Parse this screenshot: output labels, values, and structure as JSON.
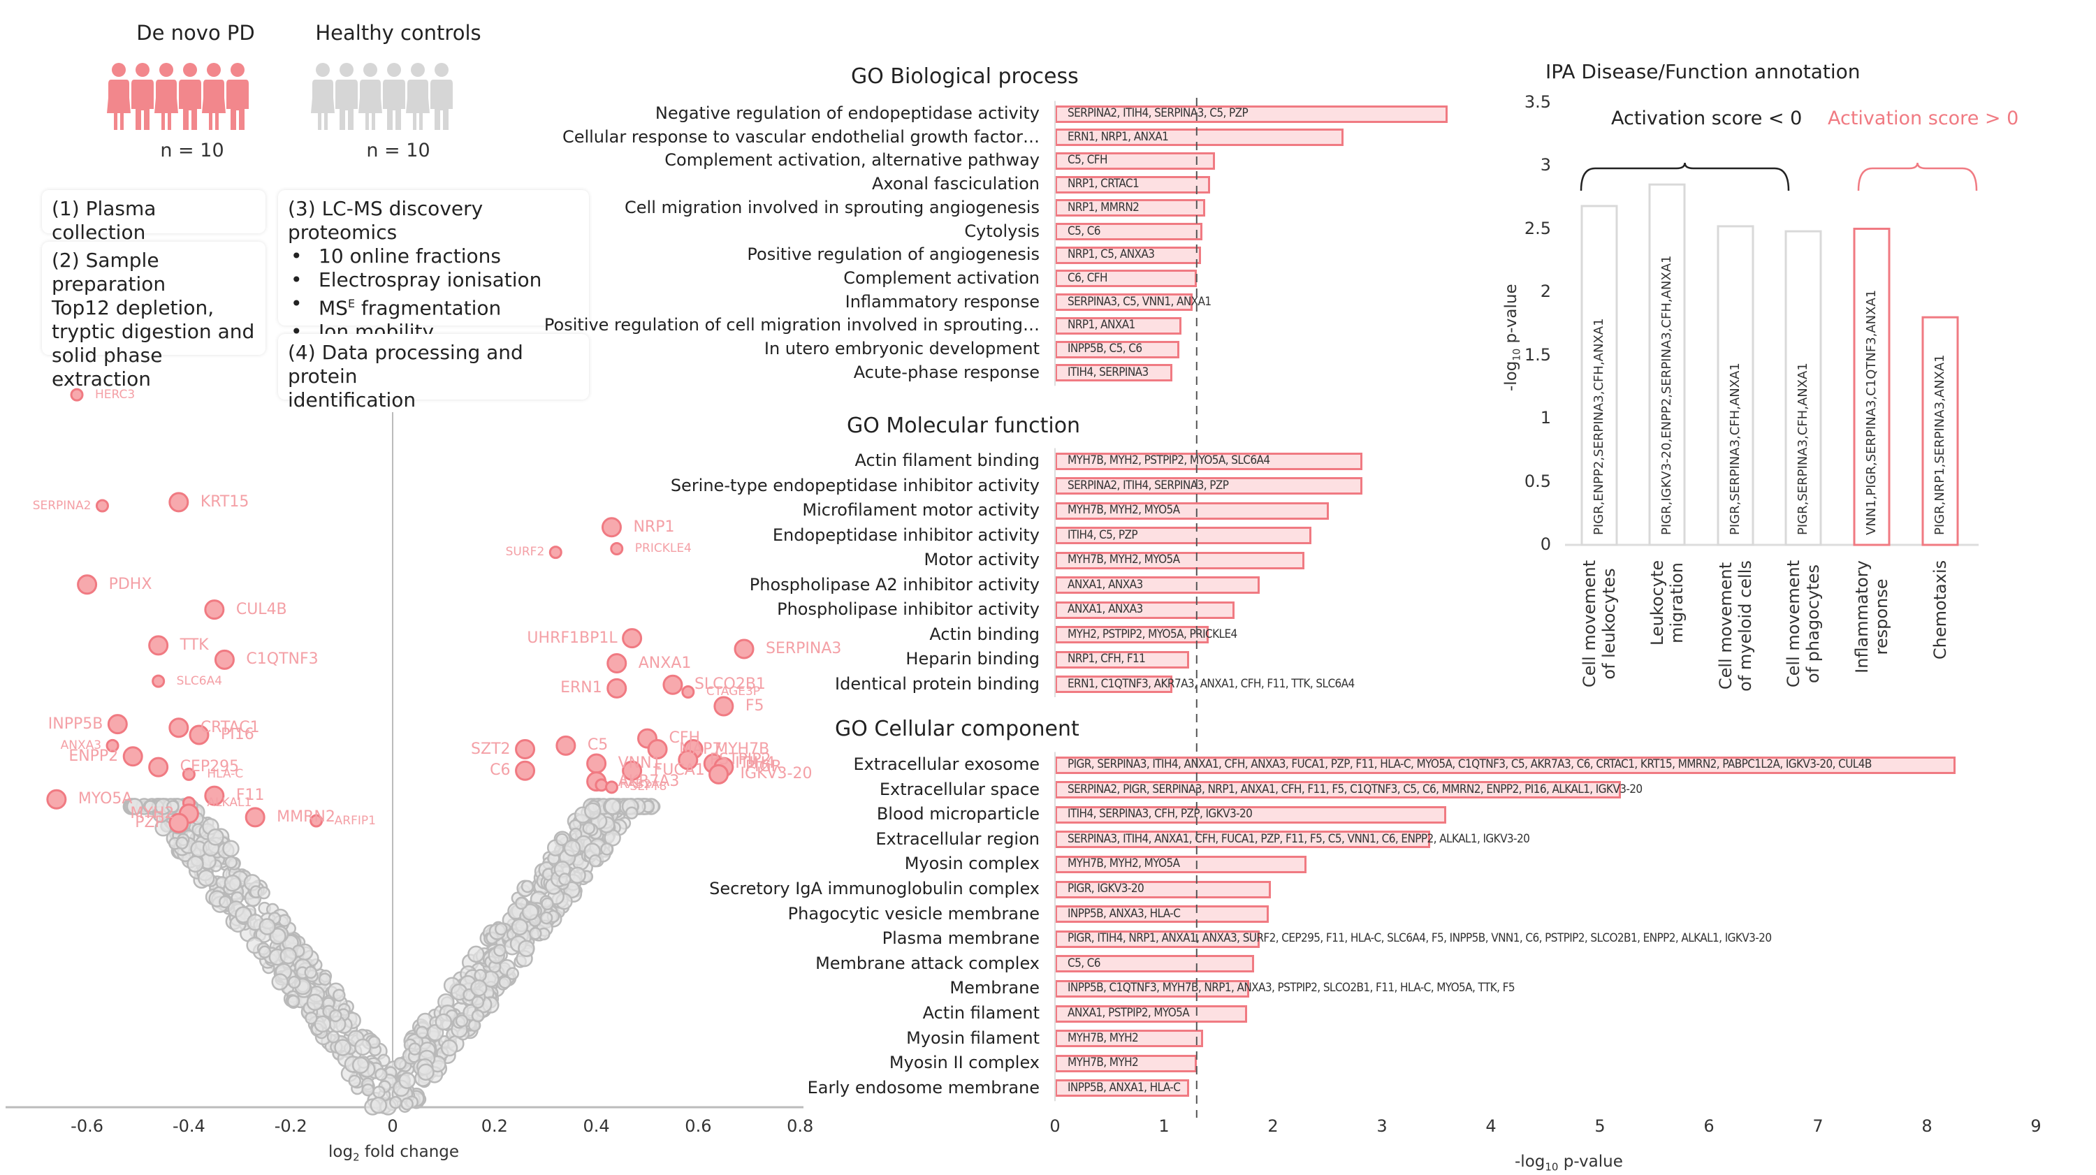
{
  "cohorts": {
    "pd": {
      "title": "De novo PD",
      "n_label": "n = 10",
      "color": "#f2878c",
      "icons": [
        "female",
        "male",
        "female",
        "male",
        "female",
        "male"
      ]
    },
    "hc": {
      "title": "Healthy controls",
      "n_label": "n = 10",
      "color": "#d6d6d6",
      "icons": [
        "female",
        "male",
        "female",
        "male",
        "female",
        "male"
      ]
    }
  },
  "workflow": {
    "step1": "(1) Plasma collection",
    "step2_title": "(2) Sample preparation",
    "step2_body": [
      "Top12 depletion,",
      "tryptic digestion and",
      "solid phase extraction"
    ],
    "step3_title": "(3) LC-MS discovery proteomics",
    "step3_items": [
      "10 online fractions",
      "Electrospray ionisation",
      "MS",
      "Ion mobility"
    ],
    "step3_item3_sup": "E",
    "step3_item3_rest": " fragmentation",
    "step4": [
      "(4) Data processing and protein",
      "identification"
    ]
  },
  "colors": {
    "accent": "#f07a82",
    "accent_fill": "#fde0e2",
    "grey_point": "#c8c8c8",
    "label_pink": "#f4a0a6"
  },
  "chart_data": [
    {
      "type": "scatter",
      "title": "Volcano plot",
      "xlabel": "log2 fold change",
      "xlabel_sub": "2",
      "ylabel": "",
      "xlim": [
        -0.8,
        0.8
      ],
      "xticks": [
        "-0.6",
        "-0.4",
        "-0.2",
        "0",
        "0.2",
        "0.4",
        "0.6",
        "0.8"
      ],
      "xtick_values": [
        -0.6,
        -0.4,
        -0.2,
        0,
        0.2,
        0.4,
        0.6,
        0.8
      ],
      "y_note": "significance expressed as fraction of y-axis height (no y ticks shown)",
      "significant_points": [
        {
          "label": "HERC3",
          "x": -0.62,
          "y": 0.995,
          "size": "small"
        },
        {
          "label": "SERPINA2",
          "x": -0.57,
          "y": 0.84,
          "size": "small"
        },
        {
          "label": "KRT15",
          "x": -0.42,
          "y": 0.845,
          "size": "large"
        },
        {
          "label": "PDHX",
          "x": -0.6,
          "y": 0.73,
          "size": "large"
        },
        {
          "label": "CUL4B",
          "x": -0.35,
          "y": 0.695,
          "size": "large"
        },
        {
          "label": "TTK",
          "x": -0.46,
          "y": 0.645,
          "size": "large"
        },
        {
          "label": "C1QTNF3",
          "x": -0.33,
          "y": 0.625,
          "size": "large"
        },
        {
          "label": "SLC6A4",
          "x": -0.46,
          "y": 0.595,
          "size": "small"
        },
        {
          "label": "INPP5B",
          "x": -0.54,
          "y": 0.535,
          "size": "large"
        },
        {
          "label": "CRTAC1",
          "x": -0.42,
          "y": 0.53,
          "size": "large"
        },
        {
          "label": "PI16",
          "x": -0.38,
          "y": 0.52,
          "size": "large"
        },
        {
          "label": "ANXA3",
          "x": -0.55,
          "y": 0.505,
          "size": "small"
        },
        {
          "label": "ENPP2",
          "x": -0.51,
          "y": 0.49,
          "size": "large"
        },
        {
          "label": "CEP295",
          "x": -0.46,
          "y": 0.475,
          "size": "large"
        },
        {
          "label": "HLA-C",
          "x": -0.4,
          "y": 0.465,
          "size": "small"
        },
        {
          "label": "MYO5A",
          "x": -0.66,
          "y": 0.43,
          "size": "large"
        },
        {
          "label": "F11",
          "x": -0.35,
          "y": 0.435,
          "size": "large"
        },
        {
          "label": "ALKAL1",
          "x": -0.4,
          "y": 0.425,
          "size": "small"
        },
        {
          "label": "MYH2",
          "x": -0.4,
          "y": 0.41,
          "size": "large"
        },
        {
          "label": "PZP",
          "x": -0.42,
          "y": 0.397,
          "size": "large"
        },
        {
          "label": "MMRN2",
          "x": -0.27,
          "y": 0.405,
          "size": "large"
        },
        {
          "label": "ARFIP1",
          "x": -0.15,
          "y": 0.4,
          "size": "small"
        },
        {
          "label": "NRP1",
          "x": 0.43,
          "y": 0.81,
          "size": "large"
        },
        {
          "label": "SURF2",
          "x": 0.32,
          "y": 0.775,
          "size": "small"
        },
        {
          "label": "PRICKLE4",
          "x": 0.44,
          "y": 0.78,
          "size": "small"
        },
        {
          "label": "UHRF1BP1L",
          "x": 0.47,
          "y": 0.655,
          "size": "large"
        },
        {
          "label": "SERPINA3",
          "x": 0.69,
          "y": 0.64,
          "size": "large"
        },
        {
          "label": "ANXA1",
          "x": 0.44,
          "y": 0.62,
          "size": "large"
        },
        {
          "label": "SLCO2B1",
          "x": 0.55,
          "y": 0.59,
          "size": "large"
        },
        {
          "label": "CTAGE3P",
          "x": 0.58,
          "y": 0.58,
          "size": "small"
        },
        {
          "label": "ERN1",
          "x": 0.44,
          "y": 0.585,
          "size": "large"
        },
        {
          "label": "F5",
          "x": 0.65,
          "y": 0.56,
          "size": "large"
        },
        {
          "label": "CFH",
          "x": 0.5,
          "y": 0.515,
          "size": "large"
        },
        {
          "label": "SZT2",
          "x": 0.26,
          "y": 0.5,
          "size": "large"
        },
        {
          "label": "C5",
          "x": 0.34,
          "y": 0.505,
          "size": "large"
        },
        {
          "label": "MAP7",
          "x": 0.52,
          "y": 0.5,
          "size": "large"
        },
        {
          "label": "MYH7B",
          "x": 0.59,
          "y": 0.5,
          "size": "large"
        },
        {
          "label": "PSTPIP2",
          "x": 0.58,
          "y": 0.485,
          "size": "large"
        },
        {
          "label": "ITIH4",
          "x": 0.63,
          "y": 0.48,
          "size": "large"
        },
        {
          "label": "PIGR",
          "x": 0.65,
          "y": 0.475,
          "size": "large"
        },
        {
          "label": "VNN1",
          "x": 0.4,
          "y": 0.48,
          "size": "large"
        },
        {
          "label": "FUCA1",
          "x": 0.47,
          "y": 0.47,
          "size": "large"
        },
        {
          "label": "C6",
          "x": 0.26,
          "y": 0.47,
          "size": "large"
        },
        {
          "label": "IGKV3-20",
          "x": 0.64,
          "y": 0.465,
          "size": "large"
        },
        {
          "label": "AKR7A3",
          "x": 0.4,
          "y": 0.455,
          "size": "large"
        },
        {
          "label": "RAB2A",
          "x": 0.41,
          "y": 0.45,
          "size": "small"
        },
        {
          "label": "SEPT8",
          "x": 0.43,
          "y": 0.447,
          "size": "small"
        }
      ]
    },
    {
      "type": "bar",
      "orientation": "horizontal",
      "xlabel": "-log10 p-value",
      "xlabel_sub": "10",
      "xlim": [
        0,
        9
      ],
      "xticks": [
        "0",
        "1",
        "2",
        "3",
        "4",
        "5",
        "6",
        "7",
        "8",
        "9"
      ],
      "threshold": 1.3,
      "panels": [
        {
          "title": "GO Biological process",
          "categories": [
            "Negative regulation of endopeptidase activity",
            "Cellular response to vascular endothelial growth factor…",
            "Complement activation, alternative pathway",
            "Axonal fasciculation",
            "Cell migration involved in sprouting angiogenesis",
            "Cytolysis",
            "Positive regulation of angiogenesis",
            "Complement activation",
            "Inflammatory response",
            "Positive regulation of cell migration involved in sprouting…",
            "In utero embryonic development",
            "Acute-phase response"
          ],
          "values": [
            3.6,
            2.65,
            1.47,
            1.42,
            1.38,
            1.35,
            1.34,
            1.3,
            1.26,
            1.16,
            1.14,
            1.08
          ],
          "genes": [
            "SERPINA2, ITIH4, SERPINA3, C5, PZP",
            "ERN1, NRP1, ANXA1",
            "C5, CFH",
            "NRP1, CRTAC1",
            "NRP1, MMRN2",
            "C5, C6",
            "NRP1, C5, ANXA3",
            "C6, CFH",
            "SERPINA3, C5, VNN1, ANXA1",
            "NRP1, ANXA1",
            "INPP5B, C5, C6",
            "ITIH4, SERPINA3"
          ]
        },
        {
          "title": "GO Molecular function",
          "categories": [
            "Actin filament binding",
            "Serine-type endopeptidase inhibitor activity",
            "Microfilament motor activity",
            "Endopeptidase inhibitor activity",
            "Motor activity",
            "Phospholipase A2 inhibitor activity",
            "Phospholipase inhibitor activity",
            "Actin binding",
            "Heparin binding",
            "Identical protein binding"
          ],
          "values": [
            2.82,
            2.82,
            2.51,
            2.35,
            2.29,
            1.88,
            1.65,
            1.41,
            1.23,
            1.08
          ],
          "genes": [
            "MYH7B, MYH2, PSTPIP2, MYO5A, SLC6A4",
            "SERPINA2, ITIH4, SERPINA3, PZP",
            "MYH7B, MYH2, MYO5A",
            "ITIH4, C5, PZP",
            "MYH7B, MYH2, MYO5A",
            "ANXA1, ANXA3",
            "ANXA1, ANXA3",
            "MYH2, PSTPIP2, MYO5A, PRICKLE4",
            "NRP1, CFH, F11",
            "ERN1, C1QTNF3, AKR7A3, ANXA1, CFH, F11, TTK, SLC6A4"
          ]
        },
        {
          "title": "GO Cellular component",
          "categories": [
            "Extracellular exosome",
            "Extracellular space",
            "Blood microparticle",
            "Extracellular region",
            "Myosin complex",
            "Secretory IgA immunoglobulin complex",
            "Phagocytic vesicle membrane",
            "Plasma membrane",
            "Membrane attack complex",
            "Membrane",
            "Actin filament",
            "Myosin filament",
            "Myosin II complex",
            "Early endosome membrane"
          ],
          "values": [
            8.26,
            5.19,
            3.59,
            3.44,
            2.31,
            1.98,
            1.96,
            1.88,
            1.83,
            1.78,
            1.76,
            1.36,
            1.3,
            1.23
          ],
          "genes": [
            "PIGR, SERPINA3, ITIH4, ANXA1, CFH, ANXA3, FUCA1, PZP, F11, HLA-C, MYO5A, C1QTNF3, C5, AKR7A3, C6, CRTAC1, KRT15, MMRN2, PABPC1L2A, IGKV3-20, CUL4B",
            "SERPINA2, PIGR, SERPINA3, NRP1, ANXA1, CFH, F11, F5, C1QTNF3, C5, C6, MMRN2, ENPP2, PI16, ALKAL1, IGKV3-20",
            "ITIH4, SERPINA3, CFH, PZP, IGKV3-20",
            "SERPINA3, ITIH4, ANXA1, CFH, FUCA1, PZP, F11, F5, C5, VNN1, C6, ENPP2, ALKAL1, IGKV3-20",
            "MYH7B, MYH2, MYO5A",
            "PIGR, IGKV3-20",
            "INPP5B, ANXA3, HLA-C",
            "PIGR, ITIH4, NRP1, ANXA1, ANXA3, SURF2, CEP295, F11, HLA-C, SLC6A4, F5, INPP5B, VNN1, C6, PSTPIP2, SLCO2B1, ENPP2, ALKAL1, IGKV3-20",
            "C5, C6",
            "INPP5B, C1QTNF3, MYH7B, NRP1, ANXA3, PSTPIP2, SLCO2B1, F11, HLA-C, MYO5A, TTK, F5",
            "ANXA1, PSTPIP2, MYO5A",
            "MYH7B, MYH2",
            "MYH7B, MYH2",
            "INPP5B, ANXA1, HLA-C"
          ]
        }
      ]
    },
    {
      "type": "bar",
      "title": "IPA Disease/Function annotation",
      "ylabel": "-log10 p-value",
      "ylabel_sub": "10",
      "ylim": [
        0,
        3.5
      ],
      "yticks": [
        "0",
        "0.5",
        "1",
        "1.5",
        "2",
        "2.5",
        "3",
        "3.5"
      ],
      "categories": [
        [
          "Cell movement",
          "of leukocytes"
        ],
        [
          "Leukocyte",
          "migration"
        ],
        [
          "Cell movement",
          "of myeloid cells"
        ],
        [
          "Cell movement",
          "of phagocytes"
        ],
        [
          "Inflammatory",
          "response"
        ],
        [
          "Chemotaxis"
        ]
      ],
      "values": [
        2.68,
        2.85,
        2.52,
        2.48,
        2.5,
        1.8
      ],
      "genes": [
        "PIGR,ENPP2,SERPINA3,CFH,ANXA1",
        "PIGR,IGKV3-20,ENPP2,SERPINA3,CFH,ANXA1",
        "PIGR,SERPINA3,CFH,ANXA1",
        "PIGR,SERPINA3,CFH,ANXA1",
        "VNN1,PIGR,SERPINA3,C1QTNF3,ANXA1",
        "PIGR,NRP1,SERPINA3,ANXA1"
      ],
      "activation": [
        "negative",
        "negative",
        "negative",
        "negative",
        "positive",
        "positive"
      ],
      "group_labels": {
        "negative": "Activation score < 0",
        "positive": "Activation score > 0"
      },
      "group_colors": {
        "negative": "#222222",
        "positive": "#f07a82"
      },
      "bar_edge": {
        "negative": "#d9d9d9",
        "positive": "#f07a82"
      }
    }
  ]
}
